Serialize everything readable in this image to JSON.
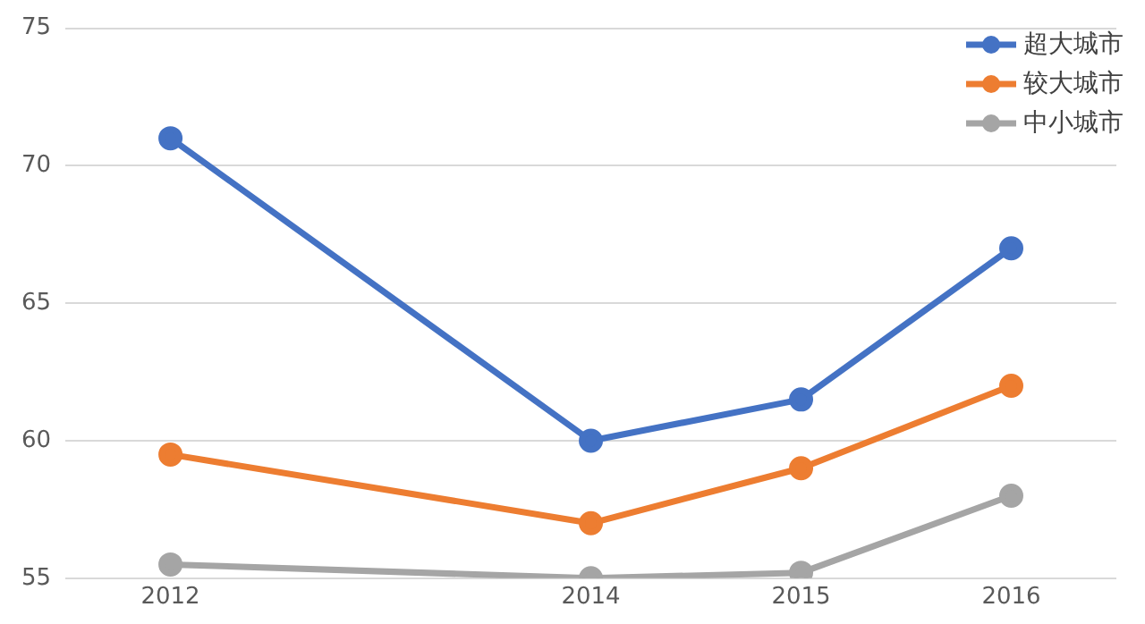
{
  "chart_data": {
    "type": "line",
    "x": [
      2012,
      2014,
      2015,
      2016
    ],
    "xlim": [
      2011.5,
      2016.5
    ],
    "xticks": [
      2012,
      2014,
      2015,
      2016
    ],
    "ylim": [
      55,
      75
    ],
    "yticks": [
      55,
      60,
      65,
      70,
      75
    ],
    "grid": "y",
    "legend": "top right",
    "marker": "circle",
    "line_style": "solid",
    "series": [
      {
        "name": "超大城市",
        "color": "#4472c4",
        "values": [
          71,
          60,
          61.5,
          67
        ]
      },
      {
        "name": "较大城市",
        "color": "#ed7d31",
        "values": [
          59.5,
          57,
          59,
          62
        ]
      },
      {
        "name": "中小城市",
        "color": "#a5a5a5",
        "values": [
          55.5,
          55,
          55.2,
          58
        ]
      }
    ]
  }
}
